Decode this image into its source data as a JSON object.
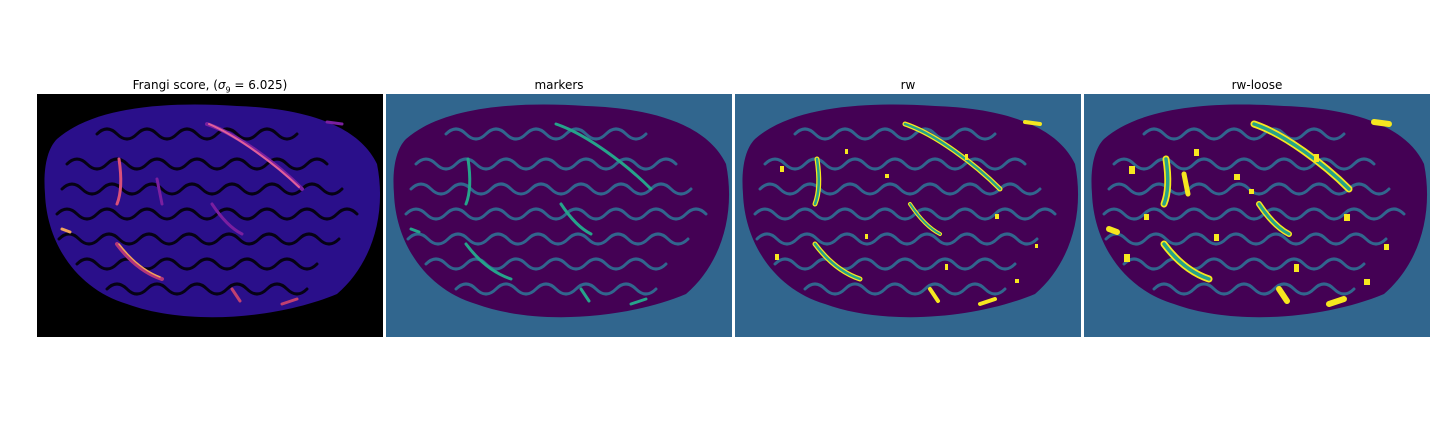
{
  "panels": [
    {
      "title_prefix": "Frangi score, (",
      "sigma_symbol": "σ",
      "sigma_sub": "9",
      "title_suffix": " = 6.025)",
      "colormap": "magma"
    },
    {
      "title": "markers",
      "colormap": "viridis"
    },
    {
      "title": "rw",
      "colormap": "viridis"
    },
    {
      "title": "rw-loose",
      "colormap": "viridis"
    }
  ],
  "colors": {
    "background_frangi": "#000000",
    "tissue_frangi": "#2a0f8a",
    "vessel_frangi_low": "#7a1fa0",
    "vessel_frangi_high": "#f2a35a",
    "background_viridis": "#31668e",
    "tissue_viridis": "#440154",
    "marker_viridis": "#26a38a",
    "segment_edge": "#f6e71f"
  }
}
